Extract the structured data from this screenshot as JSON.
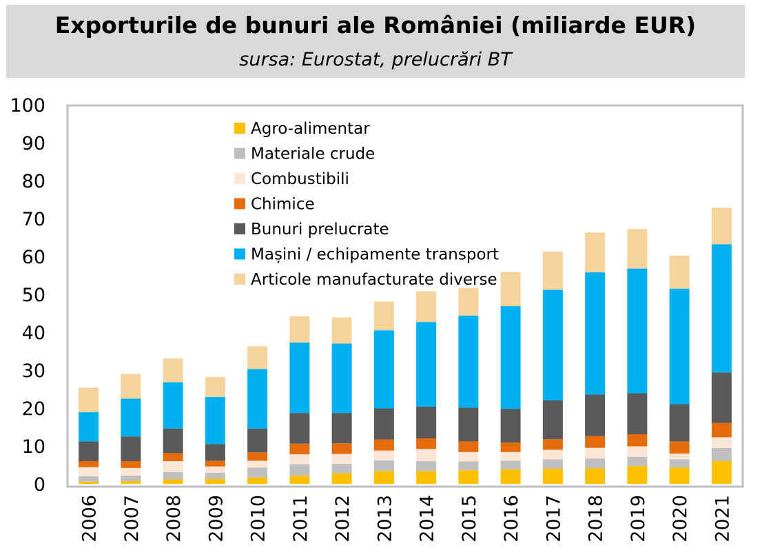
{
  "header": {
    "title": "Exporturile de bunuri ale României (miliarde EUR)",
    "subtitle": "sursa: Eurostat, prelucrări BT"
  },
  "chart_data": {
    "type": "bar",
    "stacked": true,
    "title": "Exporturile de bunuri ale României (miliarde EUR)",
    "subtitle": "sursa: Eurostat, prelucrări BT",
    "xlabel": "",
    "ylabel": "",
    "ylim": [
      0,
      100
    ],
    "yticks": [
      0,
      10,
      20,
      30,
      40,
      50,
      60,
      70,
      80,
      90,
      100
    ],
    "grid": false,
    "legend_position": "top-center",
    "categories": [
      "2006",
      "2007",
      "2008",
      "2009",
      "2010",
      "2011",
      "2012",
      "2013",
      "2014",
      "2015",
      "2016",
      "2017",
      "2018",
      "2019",
      "2020",
      "2021"
    ],
    "series": [
      {
        "name": "Agro-alimentar",
        "color": "#ffc000",
        "values": [
          0.6,
          0.7,
          1.2,
          1.3,
          1.7,
          2.2,
          2.8,
          3.4,
          3.4,
          3.6,
          3.8,
          4.0,
          4.1,
          4.7,
          4.3,
          6.0
        ]
      },
      {
        "name": "Materiale crude",
        "color": "#bfbfbf",
        "values": [
          1.4,
          1.5,
          1.9,
          1.6,
          2.6,
          3.0,
          2.5,
          2.8,
          2.6,
          2.3,
          2.3,
          2.5,
          2.6,
          2.4,
          2.2,
          3.5
        ]
      },
      {
        "name": "Combustibili",
        "color": "#fbe5d6",
        "values": [
          2.4,
          2.0,
          2.9,
          1.7,
          1.8,
          2.6,
          2.6,
          2.6,
          3.2,
          2.5,
          2.3,
          2.5,
          2.8,
          2.8,
          1.5,
          2.8
        ]
      },
      {
        "name": "Chimice",
        "color": "#e46c0a",
        "values": [
          1.6,
          1.8,
          2.1,
          1.5,
          2.2,
          2.8,
          2.8,
          2.9,
          2.8,
          2.8,
          2.5,
          2.8,
          3.1,
          3.2,
          3.2,
          3.8
        ]
      },
      {
        "name": "Bunuri prelucrate",
        "color": "#595959",
        "values": [
          5.2,
          6.5,
          6.5,
          4.4,
          6.3,
          8.1,
          8.0,
          8.2,
          8.4,
          8.9,
          8.9,
          10.2,
          11.0,
          10.8,
          9.8,
          13.3
        ]
      },
      {
        "name": "Mașini / echipamente transport",
        "color": "#00b0f0",
        "values": [
          7.7,
          10.0,
          12.2,
          12.4,
          15.7,
          18.6,
          18.3,
          20.6,
          22.3,
          24.3,
          27.1,
          29.2,
          32.2,
          32.9,
          30.5,
          33.8
        ]
      },
      {
        "name": "Articole manufacturate diverse",
        "color": "#f5d39a",
        "values": [
          6.5,
          6.5,
          6.3,
          5.3,
          6.0,
          6.9,
          6.9,
          7.6,
          8.1,
          7.3,
          9.0,
          10.1,
          10.5,
          10.4,
          8.7,
          9.6
        ]
      }
    ]
  }
}
